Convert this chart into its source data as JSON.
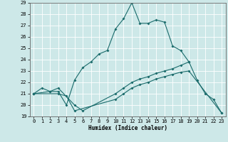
{
  "xlabel": "Humidex (Indice chaleur)",
  "xlim": [
    -0.5,
    23.5
  ],
  "ylim": [
    19,
    29
  ],
  "xticks": [
    0,
    1,
    2,
    3,
    4,
    5,
    6,
    7,
    8,
    9,
    10,
    11,
    12,
    13,
    14,
    15,
    16,
    17,
    18,
    19,
    20,
    21,
    22,
    23
  ],
  "yticks": [
    19,
    20,
    21,
    22,
    23,
    24,
    25,
    26,
    27,
    28,
    29
  ],
  "bg_color": "#cde8e8",
  "line_color": "#1a6b6b",
  "grid_color": "#ffffff",
  "curve1_x": [
    0,
    1,
    2,
    3,
    4,
    5,
    6,
    7,
    8,
    9,
    10,
    11,
    12,
    13,
    14,
    15,
    16,
    17,
    18,
    19
  ],
  "curve1_y": [
    21.0,
    21.5,
    21.2,
    21.2,
    20.0,
    22.2,
    23.3,
    23.8,
    24.5,
    24.8,
    26.7,
    27.6,
    29.0,
    27.2,
    27.2,
    27.5,
    27.3,
    25.2,
    24.8,
    23.8
  ],
  "curve2_x": [
    0,
    2,
    3,
    5,
    6,
    10,
    11,
    12,
    13,
    14,
    15,
    16,
    17,
    18,
    19,
    20,
    21,
    22,
    23
  ],
  "curve2_y": [
    21.0,
    21.2,
    21.5,
    20.0,
    19.5,
    21.0,
    21.5,
    22.0,
    22.3,
    22.5,
    22.8,
    23.0,
    23.2,
    23.5,
    23.8,
    22.2,
    21.0,
    20.5,
    19.3
  ],
  "curve3_x": [
    0,
    3,
    4,
    5,
    10,
    11,
    12,
    13,
    14,
    15,
    16,
    17,
    18,
    19,
    23
  ],
  "curve3_y": [
    21.0,
    21.0,
    20.8,
    19.5,
    20.5,
    21.0,
    21.5,
    21.8,
    22.0,
    22.3,
    22.5,
    22.7,
    22.9,
    23.0,
    19.3
  ]
}
